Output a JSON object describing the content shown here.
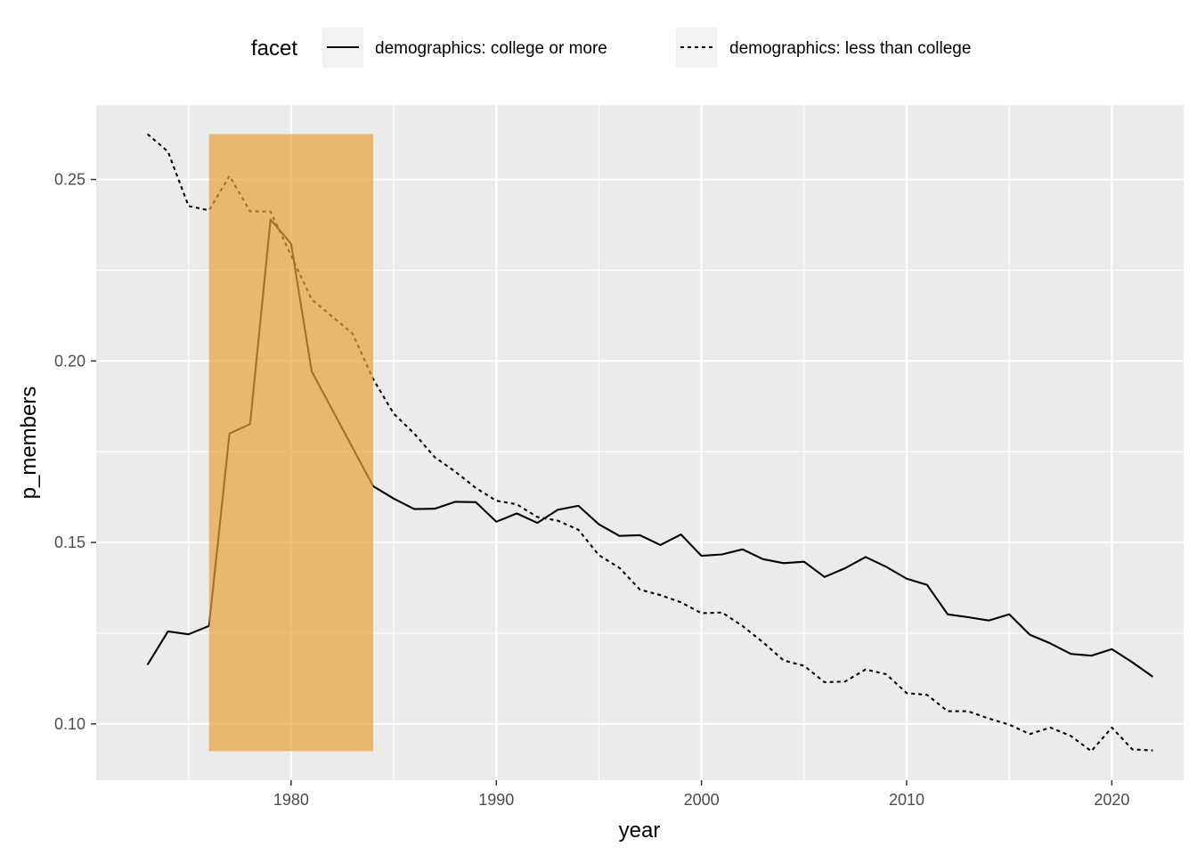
{
  "chart_data": {
    "type": "line",
    "title": "",
    "xlabel": "year",
    "ylabel": "p_members",
    "xlim": [
      1970.5,
      2023.5
    ],
    "ylim": [
      0.0845,
      0.2705
    ],
    "x_ticks": [
      1980,
      1990,
      2000,
      2010,
      2020
    ],
    "x_tick_labels": [
      "1980",
      "1990",
      "2000",
      "2010",
      "2020"
    ],
    "y_ticks": [
      0.1,
      0.15,
      0.2,
      0.25
    ],
    "y_tick_labels": [
      "0.10",
      "0.15",
      "0.20",
      "0.25"
    ],
    "legend": {
      "title": "facet",
      "placement": "top",
      "entries": [
        {
          "label": "demographics: college or more",
          "linetype": "solid"
        },
        {
          "label": "demographics: less than college",
          "linetype": "dotted"
        }
      ]
    },
    "highlight": {
      "x_start": 1976,
      "x_end": 1984,
      "y_start": 0.0925,
      "y_end": 0.2625,
      "color": "#E8A33C",
      "opacity": 0.7
    },
    "colors": {
      "panel": "#EBEBEB",
      "grid": "#FFFFFF",
      "line": "#000000",
      "legend_key": "#F2F2F2"
    },
    "series": [
      {
        "name": "demographics: college or more",
        "linetype": "solid",
        "x": [
          1973,
          1974,
          1975,
          1976,
          1977,
          1978,
          1979,
          1980,
          1981,
          1984,
          1985,
          1986,
          1987,
          1988,
          1989,
          1990,
          1991,
          1992,
          1993,
          1994,
          1995,
          1996,
          1997,
          1998,
          1999,
          2000,
          2001,
          2002,
          2003,
          2004,
          2005,
          2006,
          2007,
          2008,
          2009,
          2010,
          2011,
          2012,
          2013,
          2014,
          2015,
          2016,
          2017,
          2018,
          2019,
          2020,
          2021,
          2022
        ],
        "values": [
          0.1163,
          0.1255,
          0.1247,
          0.127,
          0.18,
          0.1826,
          0.239,
          0.2323,
          0.1972,
          0.1655,
          0.1621,
          0.1592,
          0.1593,
          0.1612,
          0.1611,
          0.1557,
          0.158,
          0.1554,
          0.159,
          0.1601,
          0.155,
          0.1518,
          0.152,
          0.1493,
          0.1522,
          0.1463,
          0.1467,
          0.1481,
          0.1454,
          0.1443,
          0.1447,
          0.1405,
          0.1429,
          0.146,
          0.1433,
          0.14,
          0.1383,
          0.1302,
          0.1294,
          0.1285,
          0.1302,
          0.1246,
          0.1222,
          0.1193,
          0.1188,
          0.1206,
          0.117,
          0.113
        ]
      },
      {
        "name": "demographics: less than college",
        "linetype": "dotted",
        "x": [
          1973,
          1974,
          1975,
          1976,
          1977,
          1978,
          1979,
          1980,
          1981,
          1983,
          1984,
          1985,
          1986,
          1987,
          1988,
          1989,
          1990,
          1991,
          1992,
          1993,
          1994,
          1995,
          1996,
          1997,
          1998,
          1999,
          2000,
          2001,
          2002,
          2003,
          2004,
          2005,
          2006,
          2007,
          2008,
          2009,
          2010,
          2011,
          2012,
          2013,
          2014,
          2015,
          2016,
          2017,
          2018,
          2019,
          2020,
          2021,
          2022
        ],
        "values": [
          0.2625,
          0.2577,
          0.2427,
          0.2415,
          0.251,
          0.2412,
          0.2412,
          0.229,
          0.217,
          0.2075,
          0.195,
          0.1855,
          0.18,
          0.1735,
          0.1695,
          0.165,
          0.1615,
          0.1605,
          0.157,
          0.156,
          0.1535,
          0.1465,
          0.143,
          0.137,
          0.1355,
          0.1335,
          0.1305,
          0.1307,
          0.127,
          0.1225,
          0.1175,
          0.116,
          0.1115,
          0.1117,
          0.115,
          0.1137,
          0.1085,
          0.108,
          0.1035,
          0.1035,
          0.1015,
          0.0998,
          0.0972,
          0.099,
          0.0967,
          0.0925,
          0.099,
          0.093,
          0.0927
        ]
      }
    ]
  }
}
